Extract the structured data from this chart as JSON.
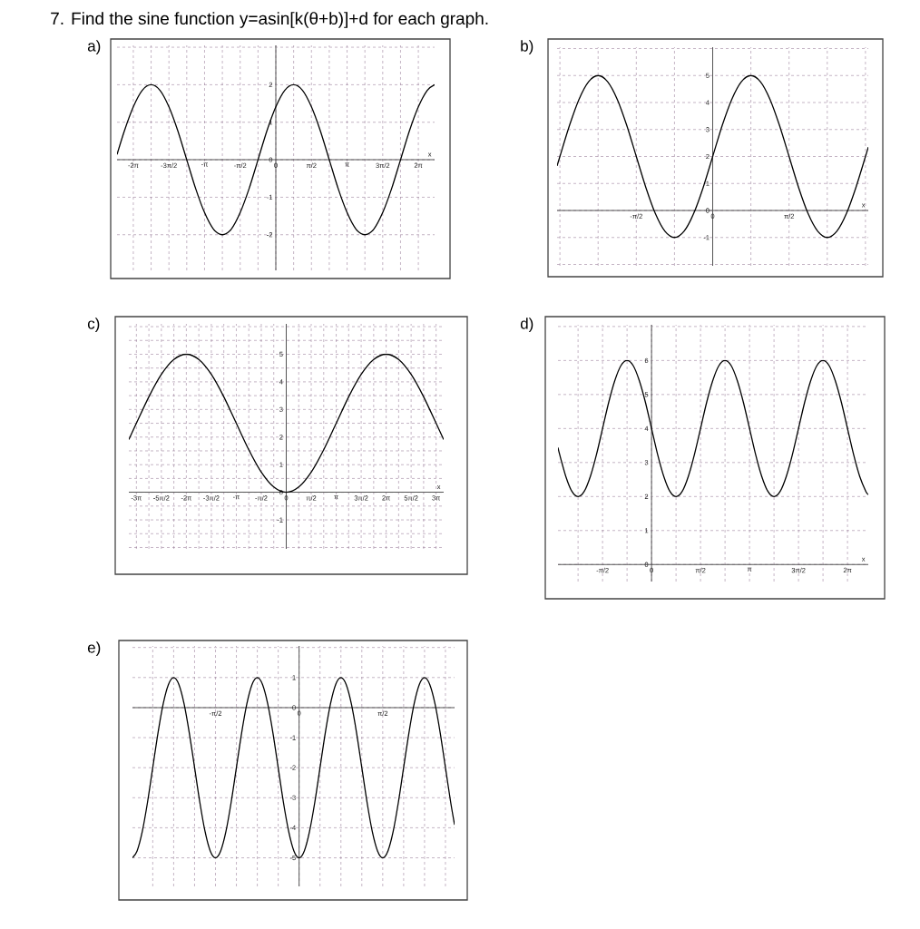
{
  "chart_data": [
    {
      "type": "other",
      "title": "7. Find the sine function y=asin[k(θ+b)]+d for each graph."
    },
    {
      "type": "line",
      "title": "a)",
      "xlabel": "x",
      "color": "#000000",
      "grid": true,
      "xlim": [
        -7.0,
        7.0
      ],
      "ylim": [
        -2.95,
        3.05
      ],
      "x": [
        -7.0,
        -6.676,
        -6.283,
        -5.89,
        -5.498,
        -5.105,
        -4.712,
        -4.32,
        -3.927,
        -3.534,
        -3.142,
        -2.749,
        -2.356,
        -1.963,
        -1.571,
        -1.178,
        -0.785,
        -0.393,
        0,
        0.393,
        0.785,
        1.178,
        1.571,
        1.963,
        2.356,
        2.749,
        3.142,
        3.534,
        3.927,
        4.32,
        4.712,
        5.105,
        5.498,
        5.89,
        6.283,
        6.676,
        7.0
      ],
      "values": [
        0.14,
        0.77,
        1.41,
        1.85,
        2,
        1.85,
        1.41,
        0.77,
        0,
        -0.77,
        -1.41,
        -1.85,
        -2,
        -1.85,
        -1.41,
        -0.77,
        0,
        0.77,
        1.41,
        1.85,
        2,
        1.85,
        1.41,
        0.77,
        0,
        -0.77,
        -1.41,
        -1.85,
        -2,
        -1.85,
        -1.41,
        -0.77,
        0,
        0.77,
        1.41,
        1.85,
        2.0
      ],
      "xticks": [
        {
          "value": -6.2832,
          "label": "-2π"
        },
        {
          "value": -5.4978,
          "label": null
        },
        {
          "value": -4.7124,
          "label": "-3π/2"
        },
        {
          "value": -3.927,
          "label": null
        },
        {
          "value": -3.1416,
          "label": "-π"
        },
        {
          "value": -2.3562,
          "label": null
        },
        {
          "value": -1.5708,
          "label": "-π/2"
        },
        {
          "value": -0.7854,
          "label": null
        },
        0,
        {
          "value": 0.7854,
          "label": null
        },
        {
          "value": 1.5708,
          "label": "π/2"
        },
        {
          "value": 2.3562,
          "label": null
        },
        {
          "value": 3.1416,
          "label": "π"
        },
        {
          "value": 3.927,
          "label": null
        },
        {
          "value": 4.7124,
          "label": "3π/2"
        },
        {
          "value": 5.4978,
          "label": null
        },
        {
          "value": 6.2832,
          "label": "2π"
        }
      ],
      "yticks": [
        -2,
        -1,
        0,
        1,
        2,
        {
          "value": 3,
          "label": null
        }
      ]
    },
    {
      "type": "line",
      "title": "b)",
      "xlabel": "x",
      "color": "#000000",
      "grid": true,
      "xlim": [
        -3.2,
        3.2
      ],
      "ylim": [
        -2.05,
        6.05
      ],
      "x": [
        -3.2,
        -3.142,
        -2.945,
        -2.749,
        -2.553,
        -2.356,
        -2.16,
        -1.963,
        -1.767,
        -1.571,
        -1.374,
        -1.178,
        -0.982,
        -0.785,
        -0.589,
        -0.393,
        -0.196,
        0,
        0.196,
        0.393,
        0.589,
        0.785,
        0.982,
        1.178,
        1.374,
        1.571,
        1.767,
        1.963,
        2.16,
        2.356,
        2.553,
        2.749,
        2.945,
        3.142,
        3.2
      ],
      "values": [
        1.65,
        2,
        3.15,
        4.12,
        4.77,
        5,
        4.77,
        4.12,
        3.15,
        2,
        0.85,
        -0.12,
        -0.77,
        -1,
        -0.77,
        -0.12,
        0.85,
        2,
        3.15,
        4.12,
        4.77,
        5,
        4.77,
        4.12,
        3.15,
        2,
        0.85,
        -0.12,
        -0.77,
        -1,
        -0.77,
        -0.12,
        0.85,
        2,
        2.35
      ],
      "xticks": [
        {
          "value": -3.1416,
          "label": null
        },
        {
          "value": -2.3562,
          "label": null
        },
        {
          "value": -1.5708,
          "label": "-π/2"
        },
        {
          "value": -0.7854,
          "label": null
        },
        0,
        {
          "value": 0.7854,
          "label": null
        },
        {
          "value": 1.5708,
          "label": "π/2"
        },
        {
          "value": 2.3562,
          "label": null
        },
        {
          "value": 3.1416,
          "label": null
        }
      ],
      "yticks": [
        {
          "value": -2,
          "label": null
        },
        -1,
        0,
        1,
        2,
        3,
        4,
        5,
        {
          "value": 6,
          "label": null
        }
      ]
    },
    {
      "type": "line",
      "title": "c)",
      "xlabel": "x",
      "color": "#000000",
      "grid": true,
      "xlim": [
        -9.9,
        9.9
      ],
      "ylim": [
        -2.05,
        6.1
      ],
      "x": [
        -9.9,
        -9.425,
        -8.639,
        -7.854,
        -7.069,
        -6.283,
        -5.498,
        -4.712,
        -3.927,
        -3.142,
        -2.356,
        -1.571,
        -0.785,
        0,
        0.785,
        1.571,
        2.356,
        3.142,
        3.927,
        4.712,
        5.498,
        6.283,
        7.069,
        7.854,
        8.639,
        9.425,
        9.9
      ],
      "values": [
        1.91,
        2.5,
        3.46,
        4.27,
        4.81,
        5,
        4.81,
        4.27,
        3.46,
        2.5,
        1.54,
        0.73,
        0.19,
        0,
        0.19,
        0.73,
        1.54,
        2.5,
        3.46,
        4.27,
        4.81,
        5,
        4.81,
        4.27,
        3.46,
        2.5,
        1.91
      ],
      "xticks": [
        {
          "value": -9.4248,
          "label": "-3π"
        },
        {
          "value": -8.6394,
          "label": null
        },
        {
          "value": -7.854,
          "label": "-5π/2"
        },
        {
          "value": -7.0686,
          "label": null
        },
        {
          "value": -6.2832,
          "label": "-2π"
        },
        {
          "value": -5.4978,
          "label": null
        },
        {
          "value": -4.7124,
          "label": "-3π/2"
        },
        {
          "value": -3.927,
          "label": null
        },
        {
          "value": -3.1416,
          "label": "-π"
        },
        {
          "value": -2.3562,
          "label": null
        },
        {
          "value": -1.5708,
          "label": "-π/2"
        },
        {
          "value": -0.7854,
          "label": null
        },
        0,
        {
          "value": 0.7854,
          "label": null
        },
        {
          "value": 1.5708,
          "label": "π/2"
        },
        {
          "value": 2.3562,
          "label": null
        },
        {
          "value": 3.1416,
          "label": "π"
        },
        {
          "value": 3.927,
          "label": null
        },
        {
          "value": 4.7124,
          "label": "3π/2"
        },
        {
          "value": 5.4978,
          "label": null
        },
        {
          "value": 6.2832,
          "label": "2π"
        },
        {
          "value": 7.0686,
          "label": null
        },
        {
          "value": 7.854,
          "label": "5π/2"
        },
        {
          "value": 8.6394,
          "label": null
        },
        {
          "value": 9.4248,
          "label": "3π"
        }
      ],
      "yticks": [
        {
          "value": -2,
          "label": null
        },
        {
          "value": -1.5,
          "label": null
        },
        -1,
        {
          "value": -0.5,
          "label": null
        },
        0,
        {
          "value": 0.5,
          "label": null
        },
        1,
        {
          "value": 1.5,
          "label": null
        },
        2,
        {
          "value": 2.5,
          "label": null
        },
        3,
        {
          "value": 3.5,
          "label": null
        },
        4,
        {
          "value": 4.5,
          "label": null
        },
        5,
        {
          "value": 5.5,
          "label": null
        },
        {
          "value": 6,
          "label": null
        }
      ]
    },
    {
      "type": "line",
      "title": "d)",
      "xlabel": "x",
      "color": "#000000",
      "grid": true,
      "xlim": [
        -3.0,
        6.95
      ],
      "ylim": [
        -0.5,
        7.05
      ],
      "x": [
        -3.0,
        -2.945,
        -2.749,
        -2.553,
        -2.356,
        -2.16,
        -1.963,
        -1.767,
        -1.571,
        -1.374,
        -1.178,
        -0.982,
        -0.785,
        -0.589,
        -0.393,
        -0.196,
        0,
        0.196,
        0.393,
        0.589,
        0.785,
        0.982,
        1.178,
        1.374,
        1.571,
        1.767,
        1.963,
        2.16,
        2.356,
        2.553,
        2.749,
        2.945,
        3.142,
        3.338,
        3.534,
        3.731,
        3.927,
        4.123,
        4.32,
        4.516,
        4.712,
        4.909,
        5.105,
        5.301,
        5.498,
        5.694,
        5.89,
        6.087,
        6.283,
        6.48,
        6.676,
        6.872,
        6.95
      ],
      "values": [
        3.44,
        3.23,
        2.59,
        2.15,
        2,
        2.15,
        2.59,
        3.23,
        4,
        4.77,
        5.41,
        5.85,
        6,
        5.85,
        5.41,
        4.77,
        4,
        3.23,
        2.59,
        2.15,
        2,
        2.15,
        2.59,
        3.23,
        4,
        4.77,
        5.41,
        5.85,
        6,
        5.85,
        5.41,
        4.77,
        4,
        3.23,
        2.59,
        2.15,
        2,
        2.15,
        2.59,
        3.23,
        4,
        4.77,
        5.41,
        5.85,
        6,
        5.85,
        5.41,
        4.77,
        4,
        3.23,
        2.59,
        2.15,
        2.06
      ],
      "xticks": [
        {
          "value": -2.3562,
          "label": null
        },
        {
          "value": -1.5708,
          "label": "-π/2"
        },
        {
          "value": -0.7854,
          "label": null
        },
        0,
        {
          "value": 0.7854,
          "label": null
        },
        {
          "value": 1.5708,
          "label": "π/2"
        },
        {
          "value": 2.3562,
          "label": null
        },
        {
          "value": 3.1416,
          "label": "π"
        },
        {
          "value": 3.927,
          "label": null
        },
        {
          "value": 4.7124,
          "label": "3π/2"
        },
        {
          "value": 5.4978,
          "label": null
        },
        {
          "value": 6.2832,
          "label": "2π"
        }
      ],
      "yticks": [
        0,
        1,
        2,
        3,
        4,
        5,
        6,
        {
          "value": 7,
          "label": null
        }
      ]
    },
    {
      "type": "line",
      "title": "e)",
      "color": "#000000",
      "grid": true,
      "xlim": [
        -3.13,
        2.92
      ],
      "ylim": [
        -5.95,
        2.05
      ],
      "x": [
        -3.13,
        -3.043,
        -2.945,
        -2.847,
        -2.749,
        -2.651,
        -2.553,
        -2.454,
        -2.356,
        -2.258,
        -2.16,
        -2.062,
        -1.963,
        -1.865,
        -1.767,
        -1.669,
        -1.571,
        -1.473,
        -1.374,
        -1.276,
        -1.178,
        -1.08,
        -0.982,
        -0.884,
        -0.785,
        -0.687,
        -0.589,
        -0.491,
        -0.393,
        -0.295,
        -0.196,
        -0.098,
        0,
        0.098,
        0.196,
        0.295,
        0.393,
        0.491,
        0.589,
        0.687,
        0.785,
        0.884,
        0.982,
        1.08,
        1.178,
        1.276,
        1.374,
        1.473,
        1.571,
        1.669,
        1.767,
        1.865,
        1.963,
        2.062,
        2.16,
        2.258,
        2.356,
        2.454,
        2.553,
        2.651,
        2.749,
        2.847,
        2.92
      ],
      "values": [
        -5.0,
        -4.77,
        -4.12,
        -3.15,
        -2,
        -0.85,
        0.12,
        0.77,
        1,
        0.77,
        0.12,
        -0.85,
        -2,
        -3.15,
        -4.12,
        -4.77,
        -5,
        -4.77,
        -4.12,
        -3.15,
        -2,
        -0.85,
        0.12,
        0.77,
        1,
        0.77,
        0.12,
        -0.85,
        -2,
        -3.15,
        -4.12,
        -4.77,
        -5,
        -4.77,
        -4.12,
        -3.15,
        -2,
        -0.85,
        0.12,
        0.77,
        1,
        0.77,
        0.12,
        -0.85,
        -2,
        -3.15,
        -4.12,
        -4.77,
        -5,
        -4.77,
        -4.12,
        -3.15,
        -2,
        -0.85,
        0.12,
        0.77,
        1,
        0.77,
        0.12,
        -0.85,
        -2,
        -3.15,
        -3.9
      ],
      "xticks": [
        {
          "value": -2.7489,
          "label": null
        },
        {
          "value": -2.3562,
          "label": null
        },
        {
          "value": -1.9635,
          "label": null
        },
        {
          "value": -1.5708,
          "label": "-π/2"
        },
        {
          "value": -1.1781,
          "label": null
        },
        {
          "value": -0.7854,
          "label": null
        },
        {
          "value": -0.3927,
          "label": null
        },
        0,
        {
          "value": 0.3927,
          "label": null
        },
        {
          "value": 0.7854,
          "label": null
        },
        {
          "value": 1.1781,
          "label": null
        },
        {
          "value": 1.5708,
          "label": "π/2"
        },
        {
          "value": 1.9635,
          "label": null
        },
        {
          "value": 2.3562,
          "label": null
        },
        {
          "value": 2.7489,
          "label": null
        }
      ],
      "yticks": [
        -5,
        -4,
        -3,
        -2,
        -1,
        0,
        1,
        {
          "value": 2,
          "label": null
        }
      ]
    }
  ]
}
